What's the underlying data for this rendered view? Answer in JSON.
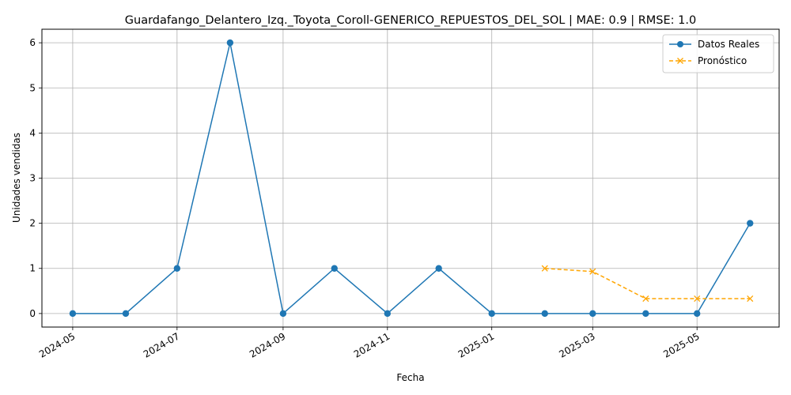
{
  "chart_data": {
    "type": "line",
    "title": "Guardafango_Delantero_Izq._Toyota_Coroll-GENERICO_REPUESTOS_DEL_SOL | MAE: 0.9 | RMSE: 1.0",
    "xlabel": "Fecha",
    "ylabel": "Unidades vendidas",
    "ylim": [
      -0.3,
      6.3
    ],
    "xlim": [
      "2024-04-13",
      "2025-06-18"
    ],
    "yticks": [
      0,
      1,
      2,
      3,
      4,
      5,
      6
    ],
    "xticks": [
      "2024-05",
      "2024-07",
      "2024-09",
      "2024-11",
      "2025-01",
      "2025-03",
      "2025-05"
    ],
    "xtick_dates": [
      "2024-05-01",
      "2024-07-01",
      "2024-09-01",
      "2024-11-01",
      "2025-01-01",
      "2025-03-01",
      "2025-05-01"
    ],
    "grid": true,
    "legend_position": "top-right",
    "series": [
      {
        "name": "Datos Reales",
        "color": "#1f77b4",
        "marker": "circle",
        "linestyle": "solid",
        "x": [
          "2024-05-01",
          "2024-06-01",
          "2024-07-01",
          "2024-08-01",
          "2024-09-01",
          "2024-10-01",
          "2024-11-01",
          "2024-12-01",
          "2025-01-01",
          "2025-02-01",
          "2025-03-01",
          "2025-04-01",
          "2025-05-01",
          "2025-06-01"
        ],
        "y": [
          0,
          0,
          1,
          6,
          0,
          1,
          0,
          1,
          0,
          0,
          0,
          0,
          0,
          2
        ]
      },
      {
        "name": "Pronóstico",
        "color": "#ffa500",
        "marker": "x",
        "linestyle": "dashed",
        "x": [
          "2025-02-01",
          "2025-03-01",
          "2025-04-01",
          "2025-05-01",
          "2025-06-01"
        ],
        "y": [
          1.0,
          0.93,
          0.33,
          0.33,
          0.33
        ]
      }
    ]
  }
}
